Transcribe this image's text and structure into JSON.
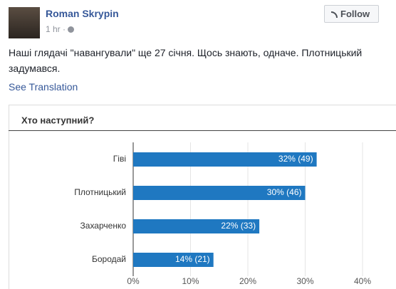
{
  "post": {
    "author": "Roman Skrypin",
    "time": "1 hr ·",
    "follow": "Follow",
    "text": [
      "Наші глядачі \"навангували\" ще 27 січня. Щось знають, одначе. Плотницький",
      "задумався."
    ],
    "see_translation": "See Translation"
  },
  "chart_data": {
    "type": "bar",
    "orientation": "horizontal",
    "title": "Хто наступний?",
    "categories": [
      "Гіві",
      "Плотницький",
      "Захарченко",
      "Бородай"
    ],
    "values": [
      32,
      30,
      22,
      14
    ],
    "value_labels": [
      "32% (49)",
      "30% (46)",
      "22% (33)",
      "14% (21)"
    ],
    "color": "#1f78c1",
    "xlim": [
      0,
      40
    ],
    "xticks": [
      {
        "value": 0,
        "label": "0%"
      },
      {
        "value": 10,
        "label": "10%"
      },
      {
        "value": 20,
        "label": "20%"
      },
      {
        "value": 30,
        "label": "30%"
      },
      {
        "value": 40,
        "label": "40%"
      }
    ],
    "grid": true
  }
}
